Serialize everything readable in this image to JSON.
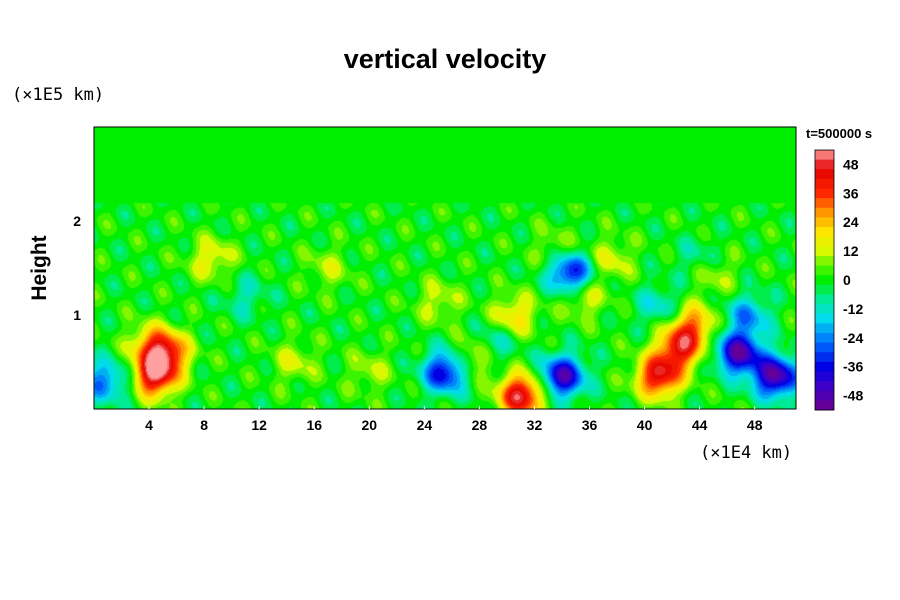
{
  "chart_data": {
    "type": "heatmap",
    "title": "vertical velocity",
    "ylabel": "Height",
    "xlabel": "",
    "x_unit": "(×1E4 km)",
    "y_unit": "(×1E5 km)",
    "time_label": "t=500000 s",
    "xlim": [
      0,
      51
    ],
    "ylim": [
      0,
      3
    ],
    "x_ticks": [
      4,
      8,
      12,
      16,
      20,
      24,
      28,
      32,
      36,
      40,
      44,
      48
    ],
    "y_ticks": [
      1,
      2
    ],
    "colorbar_ticks": [
      48,
      36,
      24,
      12,
      0,
      -12,
      -24,
      -36,
      -48
    ],
    "colorbar_range": [
      -54,
      54
    ],
    "background_value": 0,
    "features": [
      {
        "x": 4.3,
        "y": 0.35,
        "value": 48
      },
      {
        "x": 5.2,
        "y": 0.6,
        "value": 40
      },
      {
        "x": 4.0,
        "y": 0.7,
        "value": 18
      },
      {
        "x": 2.0,
        "y": 0.3,
        "value": -12
      },
      {
        "x": 0.3,
        "y": 0.3,
        "value": -20
      },
      {
        "x": 14.5,
        "y": 0.5,
        "value": 12
      },
      {
        "x": 20.0,
        "y": 0.4,
        "value": 10
      },
      {
        "x": 25.5,
        "y": 0.4,
        "value": -40
      },
      {
        "x": 27.5,
        "y": 0.55,
        "value": 18
      },
      {
        "x": 31.0,
        "y": 0.15,
        "value": 50
      },
      {
        "x": 29.0,
        "y": 0.7,
        "value": -14
      },
      {
        "x": 34.0,
        "y": 0.35,
        "value": -45
      },
      {
        "x": 35.5,
        "y": 1.2,
        "value": 16
      },
      {
        "x": 34.6,
        "y": 1.45,
        "value": -40
      },
      {
        "x": 41.0,
        "y": 0.35,
        "value": 45
      },
      {
        "x": 42.5,
        "y": 0.65,
        "value": 40
      },
      {
        "x": 43.5,
        "y": 0.9,
        "value": 28
      },
      {
        "x": 46.8,
        "y": 0.6,
        "value": -48
      },
      {
        "x": 49.5,
        "y": 0.35,
        "value": -50
      },
      {
        "x": 47.5,
        "y": 1.0,
        "value": -22
      },
      {
        "x": 41.0,
        "y": 1.1,
        "value": -14
      },
      {
        "x": 37.5,
        "y": 1.6,
        "value": 14
      },
      {
        "x": 30.5,
        "y": 1.0,
        "value": 20
      },
      {
        "x": 25.0,
        "y": 1.15,
        "value": 12
      },
      {
        "x": 8.5,
        "y": 1.6,
        "value": 16
      },
      {
        "x": 17.0,
        "y": 1.5,
        "value": 10
      },
      {
        "x": 11.0,
        "y": 1.2,
        "value": -10
      },
      {
        "x": 33.5,
        "y": 1.7,
        "value": 10
      },
      {
        "x": 45.0,
        "y": 1.45,
        "value": 12
      },
      {
        "x": 44.0,
        "y": 1.6,
        "value": -10
      }
    ]
  }
}
